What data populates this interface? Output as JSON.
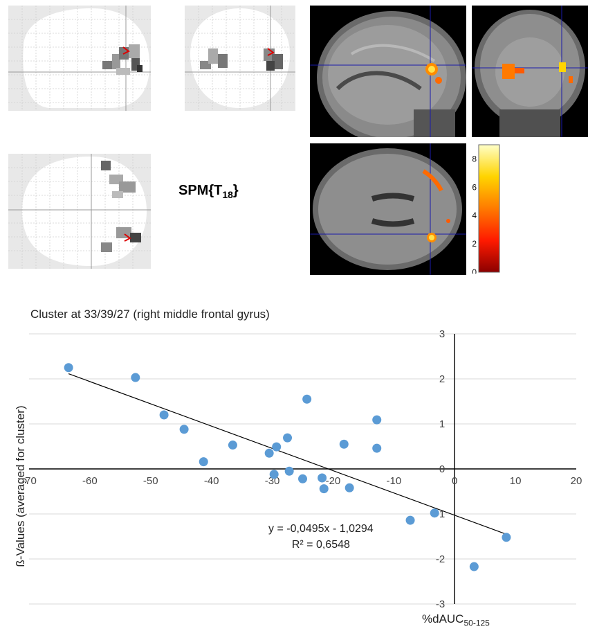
{
  "figure": {
    "spm_label": {
      "prefix": "SPM{T",
      "sub": "18",
      "suffix": "}"
    },
    "colorbar": {
      "ticks": [
        0,
        2,
        4,
        6,
        8
      ],
      "colors": [
        "#8b0000",
        "#ff1a00",
        "#ff7a00",
        "#ffd400",
        "#ffffc8"
      ]
    }
  },
  "chart_data": {
    "type": "scatter",
    "title": "Cluster at 33/39/27 (right middle frontal gyrus)",
    "xlabel_main": "%dAUC",
    "xlabel_sub": "50-125",
    "ylabel": "ß-Values (averaged for cluster)",
    "xlim": [
      -70,
      20
    ],
    "ylim": [
      -3,
      3
    ],
    "xticks": [
      -70,
      -60,
      -50,
      -40,
      -30,
      -20,
      -10,
      0,
      10,
      20
    ],
    "yticks": [
      -3,
      -2,
      -1,
      0,
      1,
      2,
      3
    ],
    "grid": true,
    "points": [
      {
        "x": -63.5,
        "y": 2.25
      },
      {
        "x": -52.5,
        "y": 2.03
      },
      {
        "x": -47.8,
        "y": 1.2
      },
      {
        "x": -44.5,
        "y": 0.88
      },
      {
        "x": -41.3,
        "y": 0.16
      },
      {
        "x": -36.5,
        "y": 0.53
      },
      {
        "x": -30.5,
        "y": 0.35
      },
      {
        "x": -29.7,
        "y": -0.12
      },
      {
        "x": -29.3,
        "y": 0.49
      },
      {
        "x": -27.5,
        "y": 0.69
      },
      {
        "x": -27.2,
        "y": -0.05
      },
      {
        "x": -25.0,
        "y": -0.22
      },
      {
        "x": -24.3,
        "y": 1.55
      },
      {
        "x": -21.8,
        "y": -0.2
      },
      {
        "x": -21.5,
        "y": -0.44
      },
      {
        "x": -18.2,
        "y": 0.55
      },
      {
        "x": -17.3,
        "y": -0.42
      },
      {
        "x": -12.8,
        "y": 1.09
      },
      {
        "x": -12.8,
        "y": 0.46
      },
      {
        "x": -7.3,
        "y": -1.14
      },
      {
        "x": -3.3,
        "y": -0.98
      },
      {
        "x": 3.2,
        "y": -2.17
      },
      {
        "x": 8.5,
        "y": -1.52
      }
    ],
    "trendline": {
      "slope": -0.0495,
      "intercept": -1.0294,
      "x_range": [
        -63.5,
        8.5
      ]
    },
    "equation": "y = -0,0495x - 1,0294",
    "r_squared": "R² = 0,6548",
    "marker_color": "#5b9bd5"
  }
}
